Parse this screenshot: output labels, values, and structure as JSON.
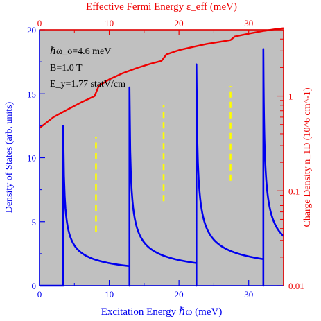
{
  "chart_data": {
    "type": "line",
    "title_top": "Effective Fermi Energy ε_eff (meV)",
    "xlabel": "Excitation Energy ℏω (meV)",
    "ylabel_left": "Density of States (arb. units)",
    "ylabel_right": "Charge Density n_1D (10^6 cm^-1)",
    "annotations": [
      "ℏω_o=4.6 meV",
      "B=1.0 T",
      "E_y=1.77 statV/cm"
    ],
    "xlim": [
      0,
      35
    ],
    "ylim_left": [
      0,
      20
    ],
    "ylim_right": [
      0.01,
      5
    ],
    "right_scale": "log",
    "x_ticks": [
      "0",
      "10",
      "20",
      "30"
    ],
    "top_ticks": [
      "0",
      "10",
      "20",
      "30"
    ],
    "y_ticks_left": [
      "0",
      "5",
      "10",
      "15",
      "20"
    ],
    "y_ticks_right": [
      "0.01",
      "0.1",
      "1"
    ],
    "background_color": "#c0c0c0",
    "colors": {
      "dos": "#0000ee",
      "density": "#ee0000",
      "dashed": "#ffff00"
    },
    "series": [
      {
        "name": "Density of States",
        "axis": "left",
        "edges": [
          3.4,
          12.9,
          22.5,
          32.1
        ],
        "peaks": [
          12.5,
          15.5,
          17.3,
          18.5
        ],
        "tail_level": [
          0.35,
          0.3,
          0.45,
          0.8
        ]
      },
      {
        "name": "Charge Density",
        "axis": "right",
        "x": [
          0,
          2,
          4,
          6,
          7.9,
          8.5,
          10,
          12,
          14,
          16,
          17.5,
          18.2,
          20,
          22,
          24,
          26,
          27.4,
          28,
          30,
          32,
          34,
          35
        ],
        "y": [
          0.46,
          0.6,
          0.72,
          0.86,
          1.0,
          1.28,
          1.5,
          1.75,
          1.98,
          2.2,
          2.35,
          2.75,
          3.05,
          3.3,
          3.55,
          3.75,
          3.9,
          4.25,
          4.55,
          4.85,
          5.1,
          5.2
        ]
      },
      {
        "name": "Dashed markers",
        "axis": "left",
        "x": [
          8.1,
          17.8,
          27.4
        ],
        "y0": [
          4.2,
          6.6,
          8.2
        ],
        "y1": [
          11.6,
          14.1,
          15.6
        ]
      }
    ]
  }
}
